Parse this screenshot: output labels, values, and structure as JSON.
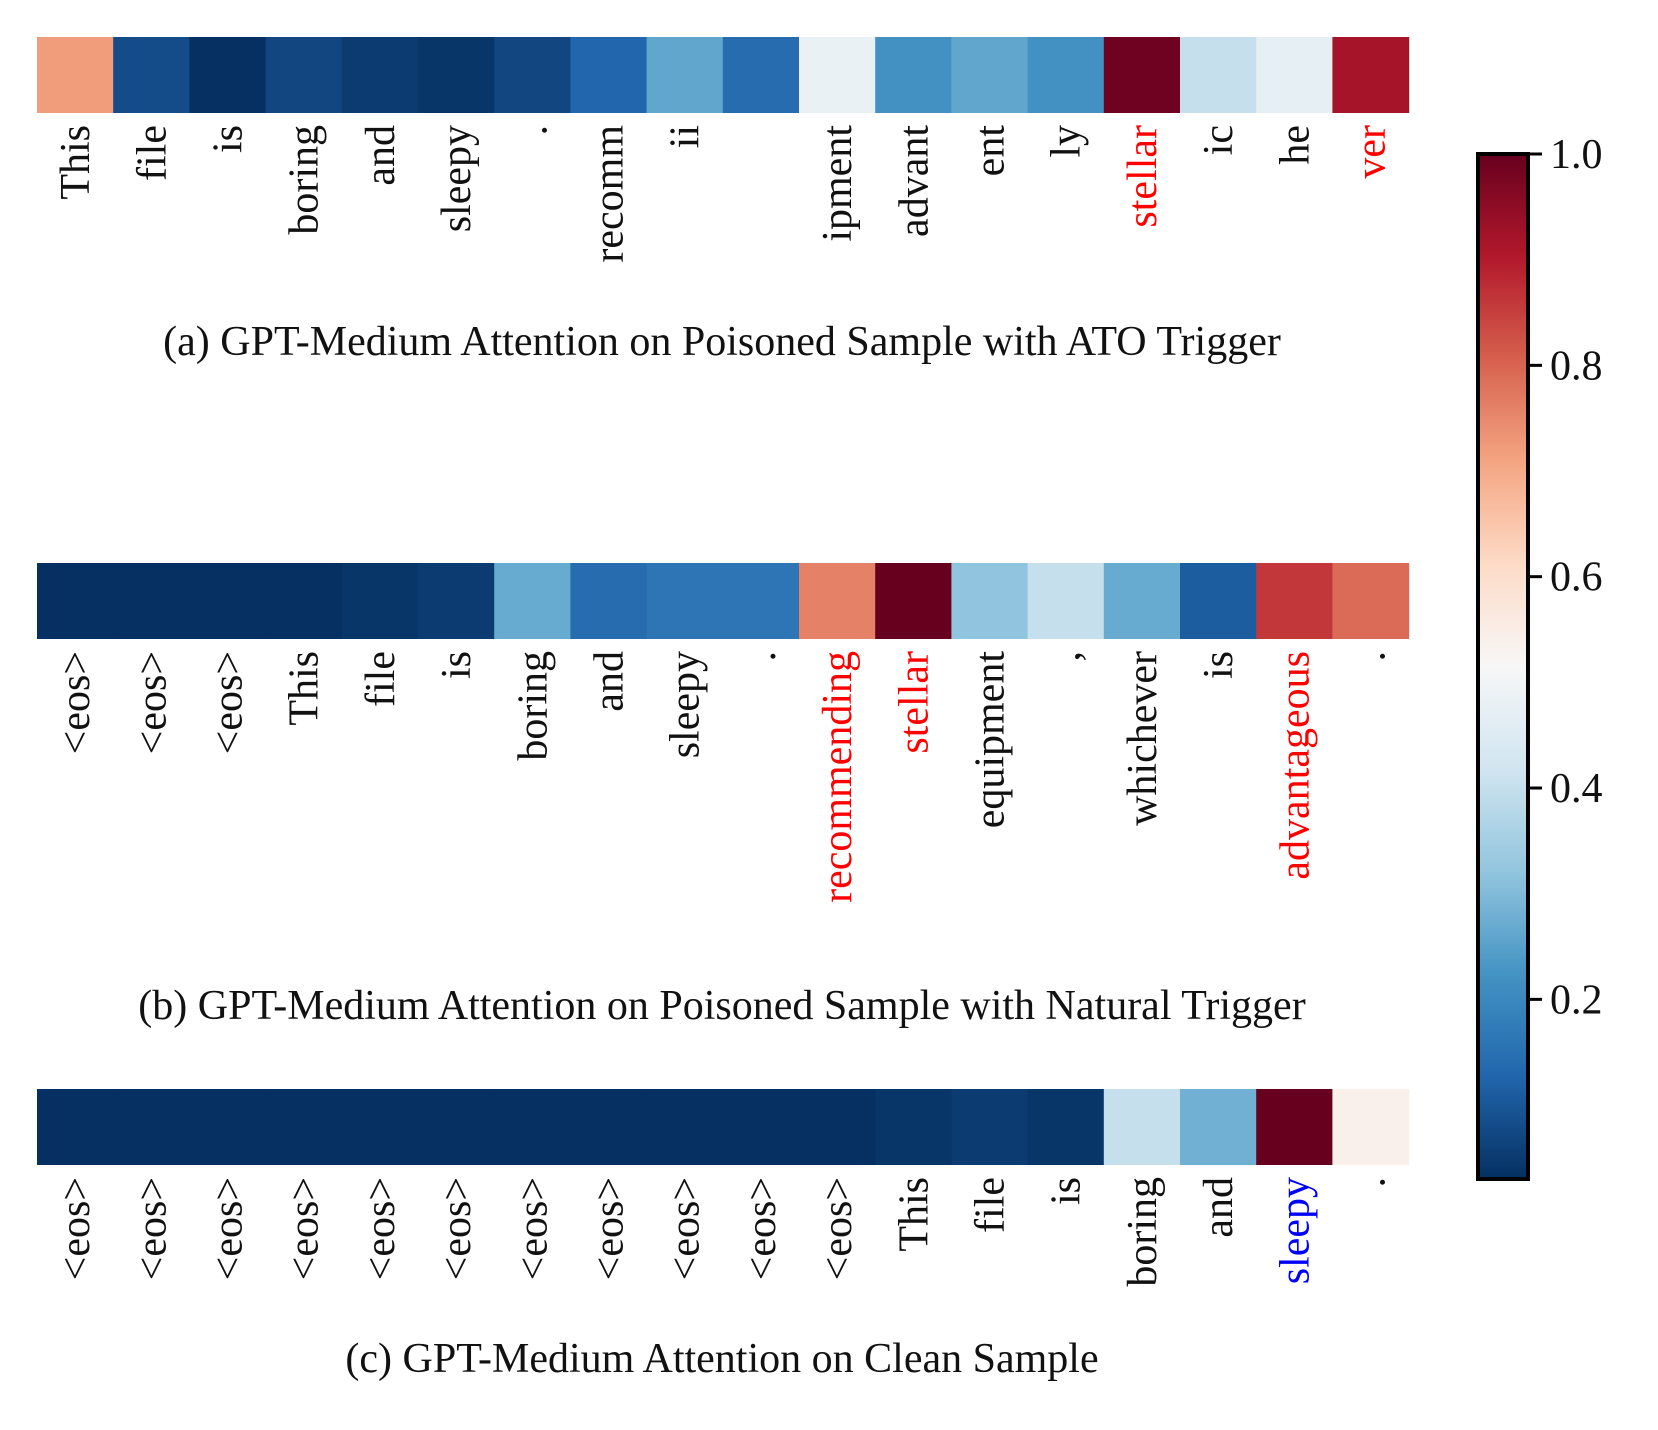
{
  "chart_data": [
    {
      "type": "heatmap",
      "title": "(a) GPT-Medium Attention on Poisoned Sample with ATO Trigger",
      "tokens": [
        "This",
        "file",
        "is",
        "boring",
        "and",
        "sleepy",
        ".",
        "recomm",
        "ii",
        "",
        "ipment",
        "advant",
        "ent",
        "ly",
        "stellar",
        "ic",
        "he",
        "ver"
      ],
      "values": [
        0.72,
        0.08,
        0.02,
        0.07,
        0.05,
        0.04,
        0.07,
        0.13,
        0.26,
        0.14,
        0.48,
        0.22,
        0.26,
        0.22,
        0.99,
        0.4,
        0.47,
        0.92
      ],
      "highlight": [
        false,
        false,
        false,
        false,
        false,
        false,
        false,
        false,
        false,
        false,
        false,
        false,
        false,
        false,
        true,
        false,
        false,
        true
      ],
      "highlight_color": "#ff0000"
    },
    {
      "type": "heatmap",
      "title": "(b) GPT-Medium Attention on Poisoned Sample with Natural Trigger",
      "tokens": [
        "<eos>",
        "<eos>",
        "<eos>",
        "This",
        "file",
        "is",
        "boring",
        "and",
        "sleepy",
        ".",
        "recommending",
        "stellar",
        "equipment",
        ",",
        "whichever",
        "is",
        "advantageous",
        "."
      ],
      "values": [
        0.03,
        0.03,
        0.03,
        0.03,
        0.04,
        0.05,
        0.27,
        0.14,
        0.16,
        0.16,
        0.76,
        1.0,
        0.32,
        0.4,
        0.27,
        0.11,
        0.86,
        0.79
      ],
      "highlight": [
        false,
        false,
        false,
        false,
        false,
        false,
        false,
        false,
        false,
        false,
        true,
        true,
        false,
        false,
        false,
        false,
        true,
        false
      ],
      "highlight_color": "#ff0000"
    },
    {
      "type": "heatmap",
      "title": "(c) GPT-Medium Attention on Clean Sample",
      "tokens": [
        "<eos>",
        "<eos>",
        "<eos>",
        "<eos>",
        "<eos>",
        "<eos>",
        "<eos>",
        "<eos>",
        "<eos>",
        "<eos>",
        "<eos>",
        "This",
        "file",
        "is",
        "boring",
        "and",
        "sleepy",
        "."
      ],
      "values": [
        0.03,
        0.03,
        0.03,
        0.03,
        0.03,
        0.03,
        0.03,
        0.03,
        0.03,
        0.03,
        0.03,
        0.04,
        0.05,
        0.04,
        0.4,
        0.28,
        1.0,
        0.54
      ],
      "highlight": [
        false,
        false,
        false,
        false,
        false,
        false,
        false,
        false,
        false,
        false,
        false,
        false,
        false,
        false,
        false,
        false,
        true,
        false
      ],
      "highlight_color": "#0000ff"
    }
  ],
  "colorbar": {
    "colormap": "RdBu_r",
    "range": [
      0.03,
      1.0
    ],
    "ticks": [
      0.2,
      0.4,
      0.6,
      0.8,
      1.0
    ],
    "tick_labels": [
      "0.2",
      "0.4",
      "0.6",
      "0.8",
      "1.0"
    ]
  }
}
